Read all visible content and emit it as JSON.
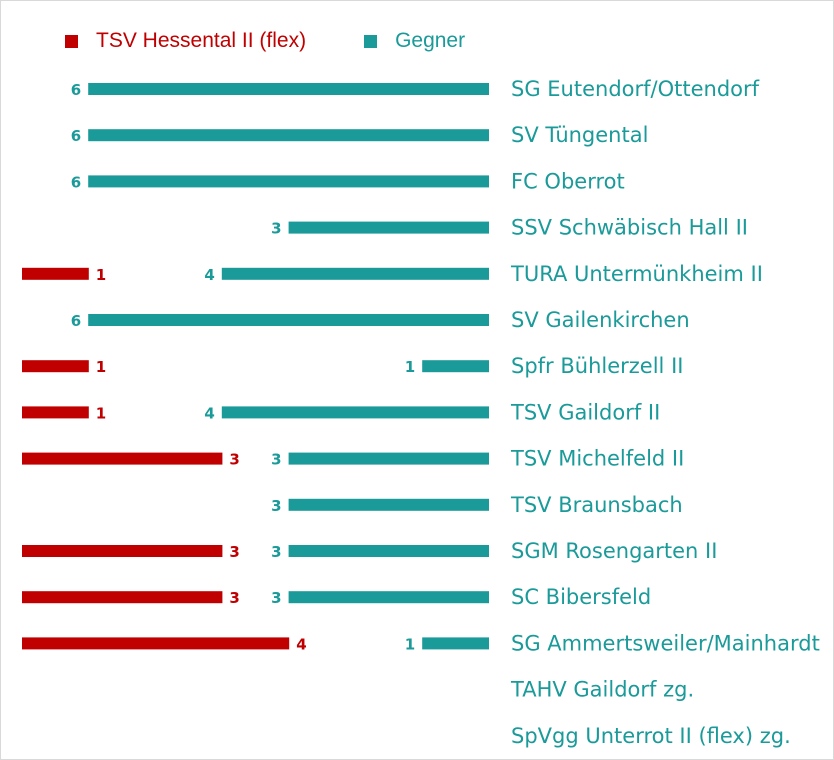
{
  "chart_data": {
    "type": "bar",
    "orientation": "horizontal",
    "legend_position": "top-left",
    "grid": false,
    "colors": {
      "home": "#c00000",
      "opponent": "#1a9a99"
    },
    "series": [
      {
        "name": "TSV Hessental II (flex)",
        "color": "#c00000"
      },
      {
        "name": "Gegner",
        "color": "#1a9a99"
      }
    ],
    "categories": [
      "SG Eutendorf/Ottendorf",
      "SV Tüngental",
      "FC Oberrot",
      "SSV Schwäbisch Hall II",
      "TURA Untermünkheim II",
      "SV Gailenkirchen",
      "Spfr Bühlerzell II",
      "TSV Gaildorf II",
      "TSV Michelfeld II",
      "TSV Braunsbach",
      "SGM Rosengarten II",
      "SC Bibersfeld",
      "SG Ammertsweiler/Mainhardt",
      "TAHV Gaildorf zg.",
      "SpVgg Unterrot II (flex) zg."
    ],
    "home_values": [
      null,
      null,
      null,
      null,
      1,
      null,
      1,
      1,
      3,
      null,
      3,
      3,
      4,
      null,
      null
    ],
    "opponent_values": [
      6,
      6,
      6,
      3,
      4,
      6,
      1,
      4,
      3,
      3,
      3,
      3,
      1,
      null,
      null
    ],
    "xlim": [
      0,
      6
    ]
  }
}
